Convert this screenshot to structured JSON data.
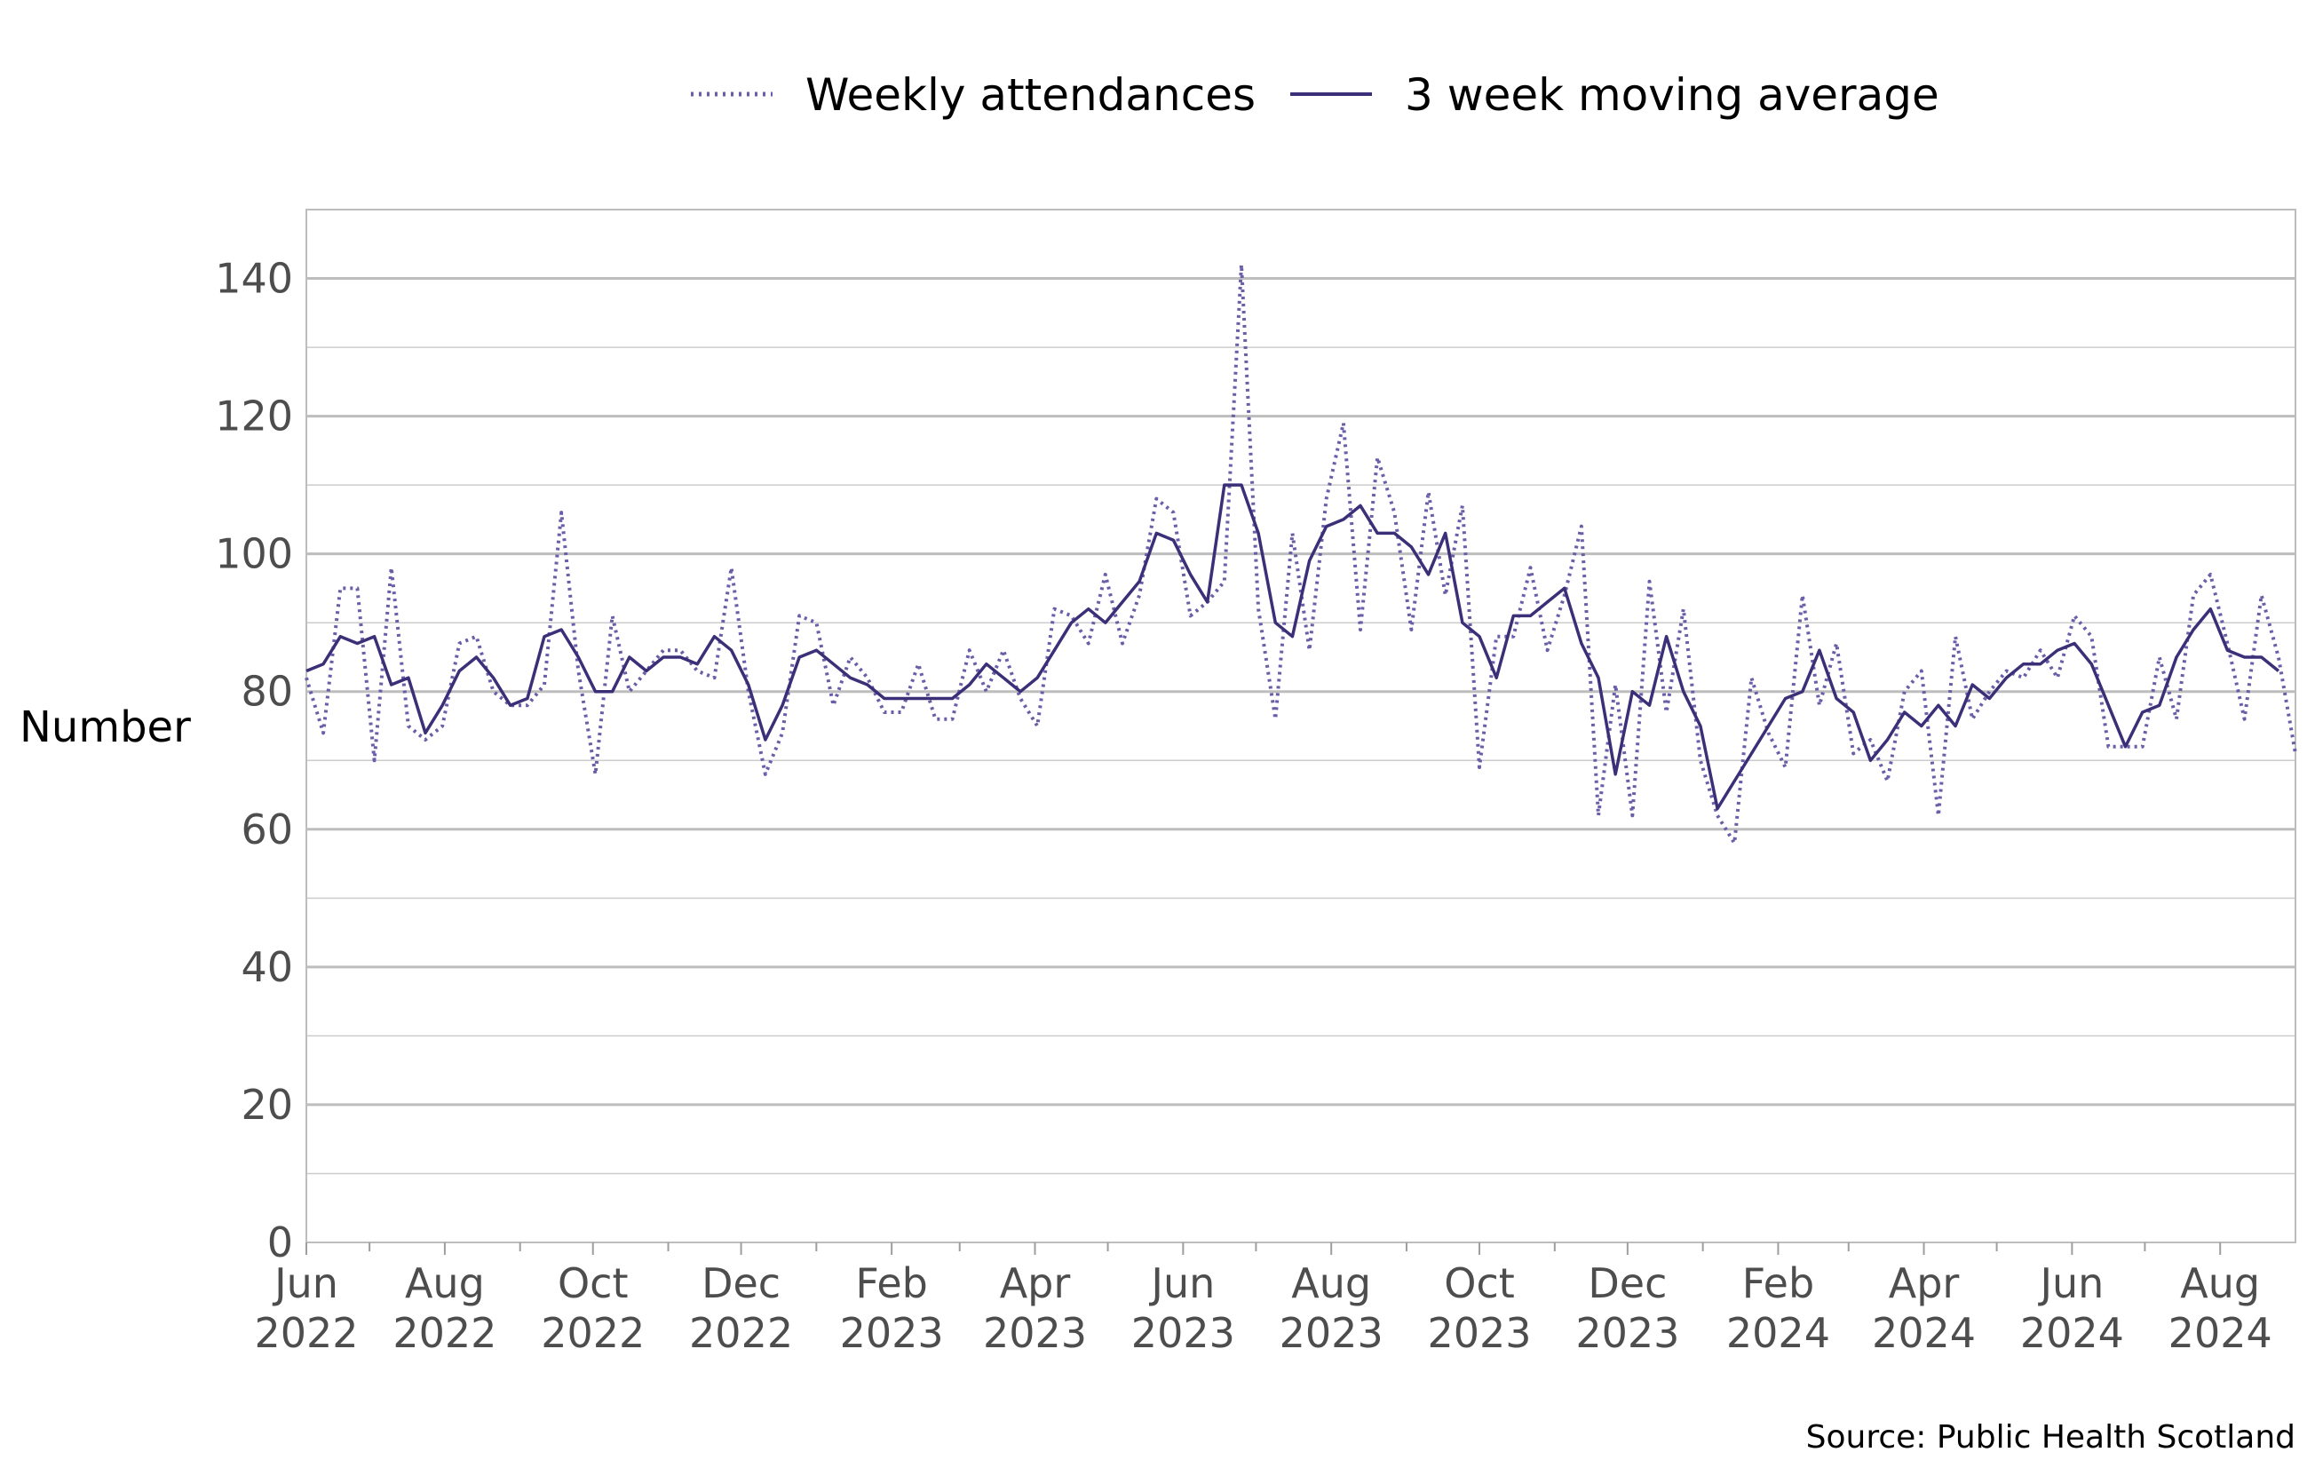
{
  "chart_data": {
    "type": "line",
    "ylabel": "Number",
    "ylim": [
      0,
      150
    ],
    "y_major_ticks": [
      0,
      20,
      40,
      60,
      80,
      100,
      120,
      140
    ],
    "y_minor_ticks": [
      10,
      30,
      50,
      70,
      90,
      110,
      130,
      150
    ],
    "x_start": "2022-06-05",
    "x_end": "2024-09-01",
    "x_ticks": [
      {
        "date": "2022-06-05",
        "month": "Jun",
        "year": "2022"
      },
      {
        "date": "2022-07-01"
      },
      {
        "date": "2022-08-01",
        "month": "Aug",
        "year": "2022"
      },
      {
        "date": "2022-09-01"
      },
      {
        "date": "2022-10-01",
        "month": "Oct",
        "year": "2022"
      },
      {
        "date": "2022-11-01"
      },
      {
        "date": "2022-12-01",
        "month": "Dec",
        "year": "2022"
      },
      {
        "date": "2023-01-01"
      },
      {
        "date": "2023-02-01",
        "month": "Feb",
        "year": "2023"
      },
      {
        "date": "2023-03-01"
      },
      {
        "date": "2023-04-01",
        "month": "Apr",
        "year": "2023"
      },
      {
        "date": "2023-05-01"
      },
      {
        "date": "2023-06-01",
        "month": "Jun",
        "year": "2023"
      },
      {
        "date": "2023-07-01"
      },
      {
        "date": "2023-08-01",
        "month": "Aug",
        "year": "2023"
      },
      {
        "date": "2023-09-01"
      },
      {
        "date": "2023-10-01",
        "month": "Oct",
        "year": "2023"
      },
      {
        "date": "2023-11-01"
      },
      {
        "date": "2023-12-01",
        "month": "Dec",
        "year": "2023"
      },
      {
        "date": "2024-01-01"
      },
      {
        "date": "2024-02-01",
        "month": "Feb",
        "year": "2024"
      },
      {
        "date": "2024-03-01"
      },
      {
        "date": "2024-04-01",
        "month": "Apr",
        "year": "2024"
      },
      {
        "date": "2024-05-01"
      },
      {
        "date": "2024-06-01",
        "month": "Jun",
        "year": "2024"
      },
      {
        "date": "2024-07-01"
      },
      {
        "date": "2024-08-01",
        "month": "Aug",
        "year": "2024"
      }
    ],
    "grid": true,
    "legend_position": "top",
    "series": [
      {
        "name": "Weekly attendances",
        "style": "dotted",
        "color": "#6b5da8",
        "points": [
          [
            "2022-06-05",
            82
          ],
          [
            "2022-06-12",
            74
          ],
          [
            "2022-06-19",
            95
          ],
          [
            "2022-06-26",
            95
          ],
          [
            "2022-07-03",
            70
          ],
          [
            "2022-07-10",
            98
          ],
          [
            "2022-07-17",
            75
          ],
          [
            "2022-07-24",
            73
          ],
          [
            "2022-07-31",
            75
          ],
          [
            "2022-08-07",
            87
          ],
          [
            "2022-08-14",
            88
          ],
          [
            "2022-08-21",
            80
          ],
          [
            "2022-08-28",
            78
          ],
          [
            "2022-09-04",
            78
          ],
          [
            "2022-09-11",
            81
          ],
          [
            "2022-09-18",
            106
          ],
          [
            "2022-09-25",
            83
          ],
          [
            "2022-10-02",
            68
          ],
          [
            "2022-10-09",
            91
          ],
          [
            "2022-10-16",
            80
          ],
          [
            "2022-10-23",
            83
          ],
          [
            "2022-10-30",
            86
          ],
          [
            "2022-11-06",
            86
          ],
          [
            "2022-11-13",
            83
          ],
          [
            "2022-11-20",
            82
          ],
          [
            "2022-11-27",
            98
          ],
          [
            "2022-12-04",
            80
          ],
          [
            "2022-12-11",
            68
          ],
          [
            "2022-12-18",
            74
          ],
          [
            "2022-12-25",
            91
          ],
          [
            "2023-01-01",
            90
          ],
          [
            "2023-01-08",
            78
          ],
          [
            "2023-01-15",
            85
          ],
          [
            "2023-01-22",
            82
          ],
          [
            "2023-01-29",
            77
          ],
          [
            "2023-02-05",
            77
          ],
          [
            "2023-02-12",
            84
          ],
          [
            "2023-02-19",
            76
          ],
          [
            "2023-02-26",
            76
          ],
          [
            "2023-03-05",
            86
          ],
          [
            "2023-03-12",
            80
          ],
          [
            "2023-03-19",
            86
          ],
          [
            "2023-03-26",
            79
          ],
          [
            "2023-04-02",
            75
          ],
          [
            "2023-04-09",
            92
          ],
          [
            "2023-04-16",
            91
          ],
          [
            "2023-04-23",
            87
          ],
          [
            "2023-04-30",
            97
          ],
          [
            "2023-05-07",
            87
          ],
          [
            "2023-05-14",
            94
          ],
          [
            "2023-05-21",
            108
          ],
          [
            "2023-05-28",
            106
          ],
          [
            "2023-06-04",
            91
          ],
          [
            "2023-06-11",
            93
          ],
          [
            "2023-06-18",
            96
          ],
          [
            "2023-06-25",
            142
          ],
          [
            "2023-07-02",
            92
          ],
          [
            "2023-07-09",
            76
          ],
          [
            "2023-07-16",
            103
          ],
          [
            "2023-07-23",
            86
          ],
          [
            "2023-07-30",
            108
          ],
          [
            "2023-08-06",
            119
          ],
          [
            "2023-08-13",
            89
          ],
          [
            "2023-08-20",
            114
          ],
          [
            "2023-08-27",
            106
          ],
          [
            "2023-09-03",
            89
          ],
          [
            "2023-09-10",
            109
          ],
          [
            "2023-09-17",
            94
          ],
          [
            "2023-09-24",
            107
          ],
          [
            "2023-10-01",
            69
          ],
          [
            "2023-10-08",
            88
          ],
          [
            "2023-10-15",
            88
          ],
          [
            "2023-10-22",
            98
          ],
          [
            "2023-10-29",
            86
          ],
          [
            "2023-11-05",
            94
          ],
          [
            "2023-11-12",
            104
          ],
          [
            "2023-11-19",
            62
          ],
          [
            "2023-11-26",
            81
          ],
          [
            "2023-12-03",
            62
          ],
          [
            "2023-12-10",
            96
          ],
          [
            "2023-12-17",
            77
          ],
          [
            "2023-12-24",
            92
          ],
          [
            "2023-12-31",
            70
          ],
          [
            "2024-01-07",
            62
          ],
          [
            "2024-01-14",
            58
          ],
          [
            "2024-01-21",
            82
          ],
          [
            "2024-01-28",
            74
          ],
          [
            "2024-02-04",
            69
          ],
          [
            "2024-02-11",
            94
          ],
          [
            "2024-02-18",
            78
          ],
          [
            "2024-02-25",
            87
          ],
          [
            "2024-03-03",
            71
          ],
          [
            "2024-03-10",
            73
          ],
          [
            "2024-03-17",
            67
          ],
          [
            "2024-03-24",
            80
          ],
          [
            "2024-03-31",
            83
          ],
          [
            "2024-04-07",
            62
          ],
          [
            "2024-04-14",
            88
          ],
          [
            "2024-04-21",
            76
          ],
          [
            "2024-04-28",
            80
          ],
          [
            "2024-05-05",
            83
          ],
          [
            "2024-05-12",
            82
          ],
          [
            "2024-05-19",
            86
          ],
          [
            "2024-05-26",
            82
          ],
          [
            "2024-06-02",
            91
          ],
          [
            "2024-06-09",
            88
          ],
          [
            "2024-06-16",
            72
          ],
          [
            "2024-06-23",
            72
          ],
          [
            "2024-06-30",
            72
          ],
          [
            "2024-07-07",
            85
          ],
          [
            "2024-07-14",
            76
          ],
          [
            "2024-07-21",
            94
          ],
          [
            "2024-07-28",
            97
          ],
          [
            "2024-08-04",
            87
          ],
          [
            "2024-08-11",
            76
          ],
          [
            "2024-08-18",
            94
          ],
          [
            "2024-08-25",
            85
          ],
          [
            "2024-09-01",
            71
          ]
        ]
      },
      {
        "name": "3 week moving average",
        "style": "solid",
        "color": "#3b2f78",
        "points": [
          [
            "2022-06-05",
            83
          ],
          [
            "2022-06-12",
            84
          ],
          [
            "2022-06-19",
            88
          ],
          [
            "2022-06-26",
            87
          ],
          [
            "2022-07-03",
            88
          ],
          [
            "2022-07-10",
            81
          ],
          [
            "2022-07-17",
            82
          ],
          [
            "2022-07-24",
            74
          ],
          [
            "2022-07-31",
            78
          ],
          [
            "2022-08-07",
            83
          ],
          [
            "2022-08-14",
            85
          ],
          [
            "2022-08-21",
            82
          ],
          [
            "2022-08-28",
            78
          ],
          [
            "2022-09-04",
            79
          ],
          [
            "2022-09-11",
            88
          ],
          [
            "2022-09-18",
            89
          ],
          [
            "2022-09-25",
            85
          ],
          [
            "2022-10-02",
            80
          ],
          [
            "2022-10-09",
            80
          ],
          [
            "2022-10-16",
            85
          ],
          [
            "2022-10-23",
            83
          ],
          [
            "2022-10-30",
            85
          ],
          [
            "2022-11-06",
            85
          ],
          [
            "2022-11-13",
            84
          ],
          [
            "2022-11-20",
            88
          ],
          [
            "2022-11-27",
            86
          ],
          [
            "2022-12-04",
            81
          ],
          [
            "2022-12-11",
            73
          ],
          [
            "2022-12-18",
            78
          ],
          [
            "2022-12-25",
            85
          ],
          [
            "2023-01-01",
            86
          ],
          [
            "2023-01-08",
            84
          ],
          [
            "2023-01-15",
            82
          ],
          [
            "2023-01-22",
            81
          ],
          [
            "2023-01-29",
            79
          ],
          [
            "2023-02-05",
            79
          ],
          [
            "2023-02-12",
            79
          ],
          [
            "2023-02-19",
            79
          ],
          [
            "2023-02-26",
            79
          ],
          [
            "2023-03-05",
            81
          ],
          [
            "2023-03-12",
            84
          ],
          [
            "2023-03-19",
            82
          ],
          [
            "2023-03-26",
            80
          ],
          [
            "2023-04-02",
            82
          ],
          [
            "2023-04-09",
            86
          ],
          [
            "2023-04-16",
            90
          ],
          [
            "2023-04-23",
            92
          ],
          [
            "2023-04-30",
            90
          ],
          [
            "2023-05-07",
            93
          ],
          [
            "2023-05-14",
            96
          ],
          [
            "2023-05-21",
            103
          ],
          [
            "2023-05-28",
            102
          ],
          [
            "2023-06-04",
            97
          ],
          [
            "2023-06-11",
            93
          ],
          [
            "2023-06-18",
            110
          ],
          [
            "2023-06-25",
            110
          ],
          [
            "2023-07-02",
            103
          ],
          [
            "2023-07-09",
            90
          ],
          [
            "2023-07-16",
            88
          ],
          [
            "2023-07-23",
            99
          ],
          [
            "2023-07-30",
            104
          ],
          [
            "2023-08-06",
            105
          ],
          [
            "2023-08-13",
            107
          ],
          [
            "2023-08-20",
            103
          ],
          [
            "2023-08-27",
            103
          ],
          [
            "2023-09-03",
            101
          ],
          [
            "2023-09-10",
            97
          ],
          [
            "2023-09-17",
            103
          ],
          [
            "2023-09-24",
            90
          ],
          [
            "2023-10-01",
            88
          ],
          [
            "2023-10-08",
            82
          ],
          [
            "2023-10-15",
            91
          ],
          [
            "2023-10-22",
            91
          ],
          [
            "2023-10-29",
            93
          ],
          [
            "2023-11-05",
            95
          ],
          [
            "2023-11-12",
            87
          ],
          [
            "2023-11-19",
            82
          ],
          [
            "2023-11-26",
            68
          ],
          [
            "2023-12-03",
            80
          ],
          [
            "2023-12-10",
            78
          ],
          [
            "2023-12-17",
            88
          ],
          [
            "2023-12-24",
            80
          ],
          [
            "2023-12-31",
            75
          ],
          [
            "2024-01-07",
            63
          ],
          [
            "2024-01-14",
            67
          ],
          [
            "2024-01-21",
            71
          ],
          [
            "2024-01-28",
            75
          ],
          [
            "2024-02-04",
            79
          ],
          [
            "2024-02-11",
            80
          ],
          [
            "2024-02-18",
            86
          ],
          [
            "2024-02-25",
            79
          ],
          [
            "2024-03-03",
            77
          ],
          [
            "2024-03-10",
            70
          ],
          [
            "2024-03-17",
            73
          ],
          [
            "2024-03-24",
            77
          ],
          [
            "2024-03-31",
            75
          ],
          [
            "2024-04-07",
            78
          ],
          [
            "2024-04-14",
            75
          ],
          [
            "2024-04-21",
            81
          ],
          [
            "2024-04-28",
            79
          ],
          [
            "2024-05-05",
            82
          ],
          [
            "2024-05-12",
            84
          ],
          [
            "2024-05-19",
            84
          ],
          [
            "2024-05-26",
            86
          ],
          [
            "2024-06-02",
            87
          ],
          [
            "2024-06-09",
            84
          ],
          [
            "2024-06-16",
            78
          ],
          [
            "2024-06-23",
            72
          ],
          [
            "2024-06-30",
            77
          ],
          [
            "2024-07-07",
            78
          ],
          [
            "2024-07-14",
            85
          ],
          [
            "2024-07-21",
            89
          ],
          [
            "2024-07-28",
            92
          ],
          [
            "2024-08-04",
            86
          ],
          [
            "2024-08-11",
            85
          ],
          [
            "2024-08-18",
            85
          ],
          [
            "2024-08-25",
            83
          ]
        ]
      }
    ],
    "source": "Source: Public Health Scotland"
  }
}
